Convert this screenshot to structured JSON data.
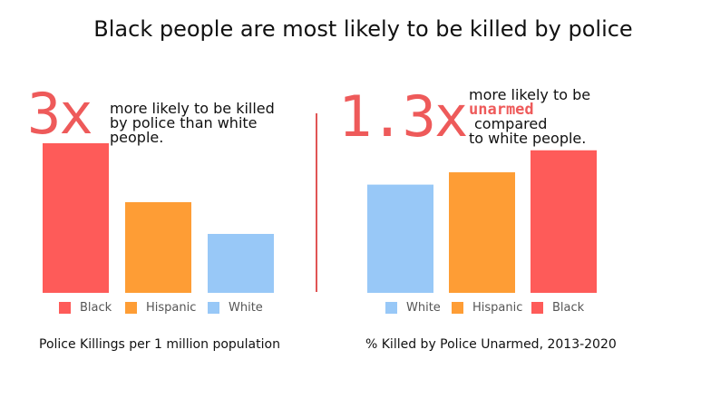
{
  "title": "Black people are most likely to be killed by police",
  "left_panel": {
    "stat_value": "3x",
    "stat_lines": [
      "more likely to be killed",
      "by police than white",
      "people."
    ],
    "legend": [
      "Black",
      "Hispanic",
      "White"
    ],
    "caption": "Police Killings per 1 million population"
  },
  "right_panel": {
    "stat_value": "1.3x",
    "stat_line1": "more likely to be",
    "stat_highlight": "unarmed",
    "stat_line3": "compared",
    "stat_line4": "to white people.",
    "legend": [
      "White",
      "Hispanic",
      "Black"
    ],
    "caption": "% Killed by Police Unarmed, 2013-2020"
  },
  "colors": {
    "black": "#fe5b59",
    "hispanic": "#fe9d35",
    "white": "#98c8f7",
    "accent": "#ee5a5a"
  },
  "chart_data": [
    {
      "type": "bar",
      "title": "Police Killings per 1 million population",
      "categories": [
        "Black",
        "Hispanic",
        "White"
      ],
      "values": [
        6.6,
        4.0,
        2.6
      ],
      "ylim": [
        0,
        7
      ],
      "grid": false,
      "legend": "bottom"
    },
    {
      "type": "bar",
      "title": "% Killed by Police Unarmed, 2013-2020",
      "categories": [
        "White",
        "Hispanic",
        "Black"
      ],
      "values": [
        12.3,
        13.7,
        16.2
      ],
      "ylim": [
        0,
        17
      ],
      "grid": false,
      "legend": "bottom"
    }
  ]
}
